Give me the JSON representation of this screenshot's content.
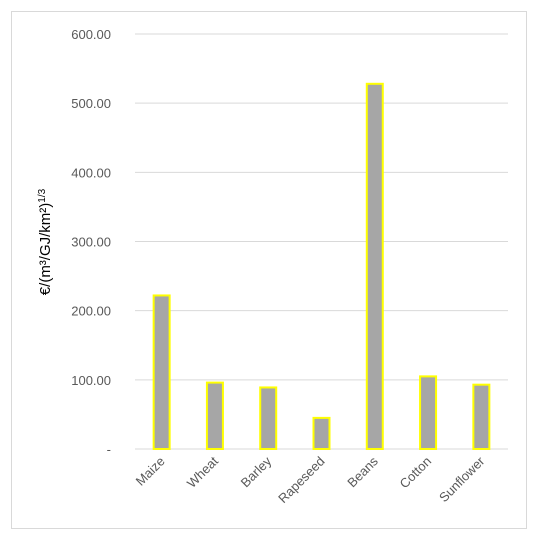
{
  "chart_data": {
    "type": "bar",
    "categories": [
      "Maize",
      "Wheat",
      "Barley",
      "Rapeseed",
      "Beans",
      "Cotton",
      "Sunflower"
    ],
    "values": [
      222,
      96,
      89,
      45,
      528,
      105,
      93
    ],
    "ylabel": "€/(m³/GJ/km²)1/3",
    "ylabel_base": "€/(m³/GJ/km²)",
    "ylabel_exponent": "1/3",
    "ylim": [
      0,
      600
    ],
    "yticks": [
      "-",
      "100.00",
      "200.00",
      "300.00",
      "400.00",
      "500.00",
      "600.00"
    ],
    "grid": true,
    "legend": "none",
    "bar_fill_color": "#a6a6a6",
    "bar_edge_color": "#ffff00",
    "grid_color": "#d9d9d9"
  }
}
